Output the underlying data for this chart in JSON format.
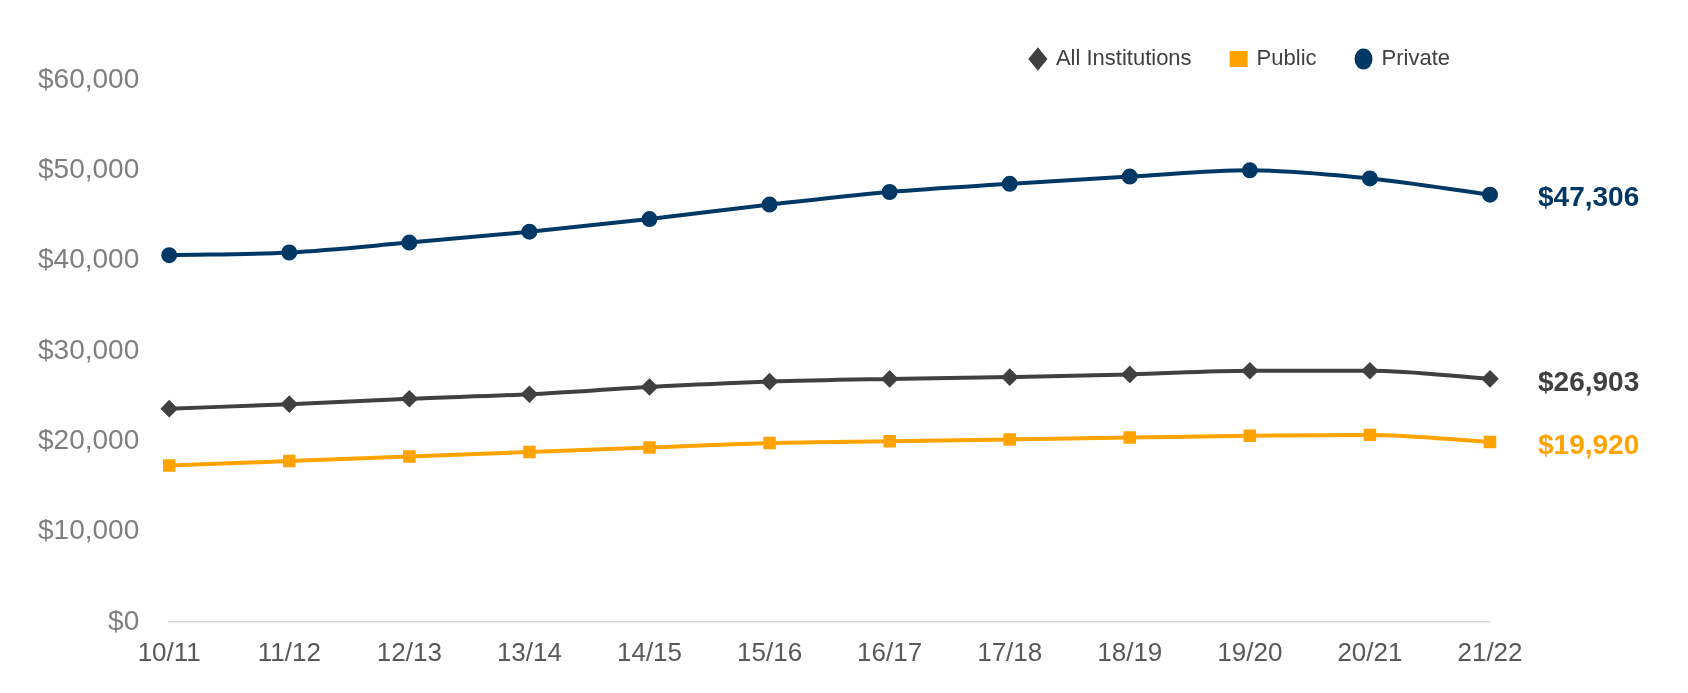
{
  "chart_data": {
    "type": "line",
    "categories": [
      "10/11",
      "11/12",
      "12/13",
      "13/14",
      "14/15",
      "15/16",
      "16/17",
      "17/18",
      "18/19",
      "19/20",
      "20/21",
      "21/22"
    ],
    "series": [
      {
        "name": "All Institutions",
        "color": "#404040",
        "marker": "diamond",
        "values": [
          23600,
          24100,
          24700,
          25200,
          26000,
          26600,
          26900,
          27100,
          27400,
          27800,
          27800,
          26903
        ],
        "value_labels": [
          null,
          null,
          null,
          null,
          null,
          null,
          null,
          null,
          null,
          null,
          null,
          "$26,903"
        ]
      },
      {
        "name": "Public",
        "color": "#ffa300",
        "marker": "square",
        "values": [
          17300,
          17800,
          18300,
          18800,
          19300,
          19800,
          20000,
          20200,
          20400,
          20600,
          20700,
          19920
        ],
        "value_labels": [
          null,
          null,
          null,
          null,
          null,
          null,
          null,
          null,
          null,
          null,
          null,
          "$19,920"
        ]
      },
      {
        "name": "Private",
        "color": "#003865",
        "marker": "circle",
        "values": [
          40600,
          40900,
          42000,
          43200,
          44600,
          46200,
          47600,
          48500,
          49300,
          50000,
          49100,
          47306
        ],
        "value_labels": [
          null,
          null,
          null,
          null,
          null,
          null,
          null,
          null,
          null,
          null,
          null,
          "$47,306"
        ]
      }
    ],
    "ylim": [
      0,
      60000
    ],
    "yticks": [
      {
        "value": 0,
        "label": "$0"
      },
      {
        "value": 10000,
        "label": "$10,000"
      },
      {
        "value": 20000,
        "label": "$20,000"
      },
      {
        "value": 30000,
        "label": "$30,000"
      },
      {
        "value": 40000,
        "label": "$40,000"
      },
      {
        "value": 50000,
        "label": "$50,000"
      },
      {
        "value": 60000,
        "label": "$60,000"
      }
    ],
    "grid": false,
    "legend": "top right",
    "line_style": "solid"
  }
}
